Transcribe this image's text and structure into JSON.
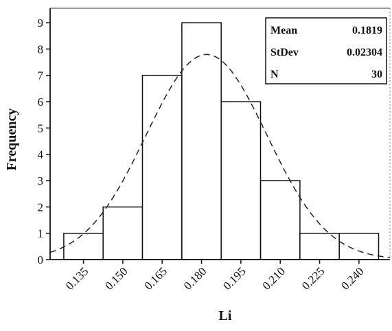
{
  "chart_data": {
    "type": "histogram",
    "xlabel": "Li",
    "ylabel": "Frequency",
    "x_ticks": [
      "0.135",
      "0.150",
      "0.165",
      "0.180",
      "0.195",
      "0.210",
      "0.225",
      "0.240"
    ],
    "y_ticks": [
      "0",
      "1",
      "2",
      "3",
      "4",
      "5",
      "6",
      "7",
      "8",
      "9"
    ],
    "bins": [
      {
        "center": 0.135,
        "count": 1
      },
      {
        "center": 0.15,
        "count": 2
      },
      {
        "center": 0.165,
        "count": 7
      },
      {
        "center": 0.18,
        "count": 9
      },
      {
        "center": 0.195,
        "count": 6
      },
      {
        "center": 0.21,
        "count": 3
      },
      {
        "center": 0.225,
        "count": 1
      },
      {
        "center": 0.24,
        "count": 1
      }
    ],
    "bin_width": 0.015,
    "xlim": [
      0.1223,
      0.2518
    ],
    "ylim": [
      0,
      9.55
    ],
    "fit": {
      "type": "normal",
      "mean": 0.1819,
      "stdev": 0.02304,
      "n": 30,
      "style": "dashed"
    },
    "stats_box": {
      "position": "top-right",
      "rows": [
        {
          "label": "Mean",
          "value": "0.1819"
        },
        {
          "label": "StDev",
          "value": "0.02304"
        },
        {
          "label": "N",
          "value": "30"
        }
      ]
    }
  }
}
